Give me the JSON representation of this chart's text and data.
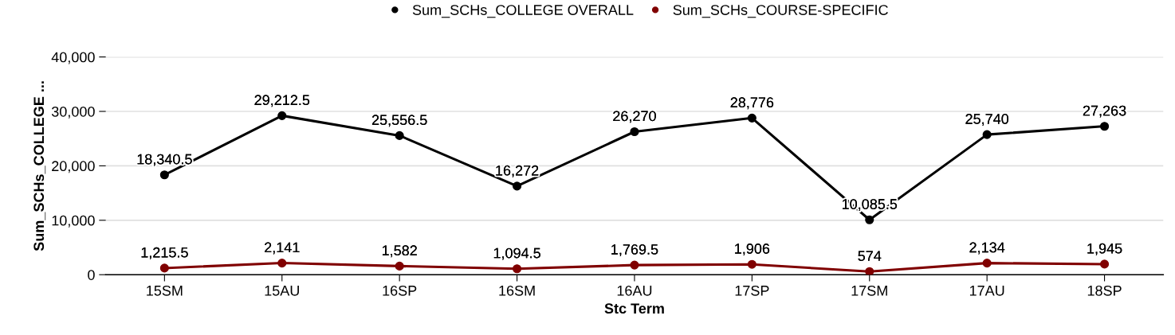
{
  "chart_data": {
    "type": "line",
    "xlabel": "Stc Term",
    "ylabel": "Sum_SCHs_COLLEGE ...",
    "categories": [
      "15SM",
      "15AU",
      "16SP",
      "16SM",
      "16AU",
      "17SP",
      "17SM",
      "17AU",
      "18SP"
    ],
    "series": [
      {
        "name": "Sum_SCHs_COLLEGE OVERALL",
        "color": "#000000",
        "values": [
          18340.5,
          29212.5,
          25556.5,
          16272,
          26270,
          28776,
          10085.5,
          25740,
          27263
        ],
        "value_labels": [
          "18,340.5",
          "29,212.5",
          "25,556.5",
          "16,272",
          "26,270",
          "28,776",
          "10,085.5",
          "25,740",
          "27,263"
        ]
      },
      {
        "name": "Sum_SCHs_COURSE-SPECIFIC",
        "color": "#800000",
        "values": [
          1215.5,
          2141,
          1582,
          1094.5,
          1769.5,
          1906,
          574,
          2134,
          1945
        ],
        "value_labels": [
          "1,215.5",
          "2,141",
          "1,582",
          "1,094.5",
          "1,769.5",
          "1,906",
          "574",
          "2,134",
          "1,945"
        ]
      }
    ],
    "ylim": [
      0,
      40000
    ],
    "yticks": [
      0,
      {
        "value": 10000,
        "label": "10,000"
      },
      {
        "value": 20000,
        "label": "20,000"
      },
      {
        "value": 30000,
        "label": "30,000"
      },
      {
        "value": 40000,
        "label": "40,000"
      }
    ],
    "grid": "y",
    "legend": "top",
    "marker": "circle",
    "line_style": "solid"
  }
}
